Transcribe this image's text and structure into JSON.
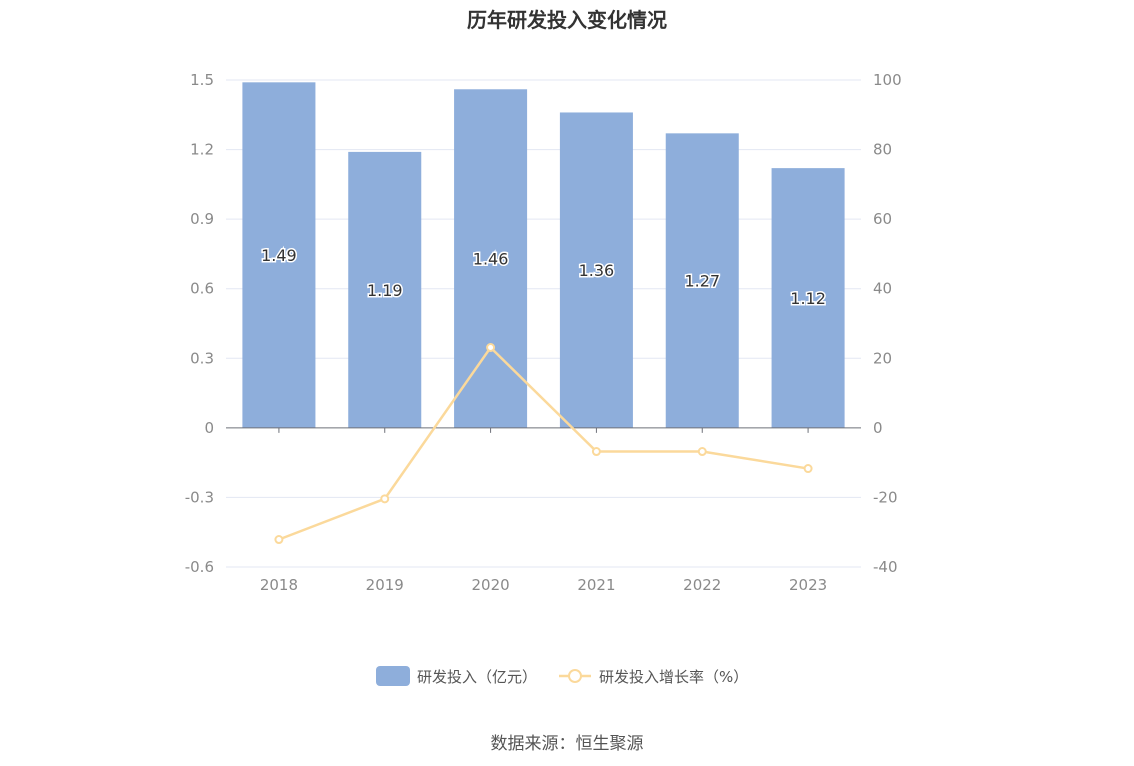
{
  "title": "历年研发投入变化情况",
  "source": "数据来源：恒生聚源",
  "chart_data": {
    "type": "bar",
    "categories": [
      "2018",
      "2019",
      "2020",
      "2021",
      "2022",
      "2023"
    ],
    "series": [
      {
        "name": "研发投入（亿元）",
        "type": "bar",
        "axis": "left",
        "color": "#8eaedb",
        "values": [
          1.49,
          1.19,
          1.46,
          1.36,
          1.27,
          1.12
        ],
        "labels": [
          "1.49",
          "1.19",
          "1.46",
          "1.36",
          "1.27",
          "1.12"
        ]
      },
      {
        "name": "研发投入增长率（%）",
        "type": "line",
        "axis": "right",
        "color": "#fbd99b",
        "values": [
          -32.1,
          -20.4,
          23.1,
          -6.8,
          -6.8,
          -11.7
        ]
      }
    ],
    "y_left": {
      "min": -0.6,
      "max": 1.5,
      "ticks": [
        "1.5",
        "1.2",
        "0.9",
        "0.6",
        "0.3",
        "0",
        "-0.3",
        "-0.6"
      ]
    },
    "y_right": {
      "min": -40,
      "max": 100,
      "ticks": [
        "100",
        "80",
        "60",
        "40",
        "20",
        "0",
        "-20",
        "-40"
      ]
    },
    "grid": true,
    "legend_position": "bottom"
  }
}
